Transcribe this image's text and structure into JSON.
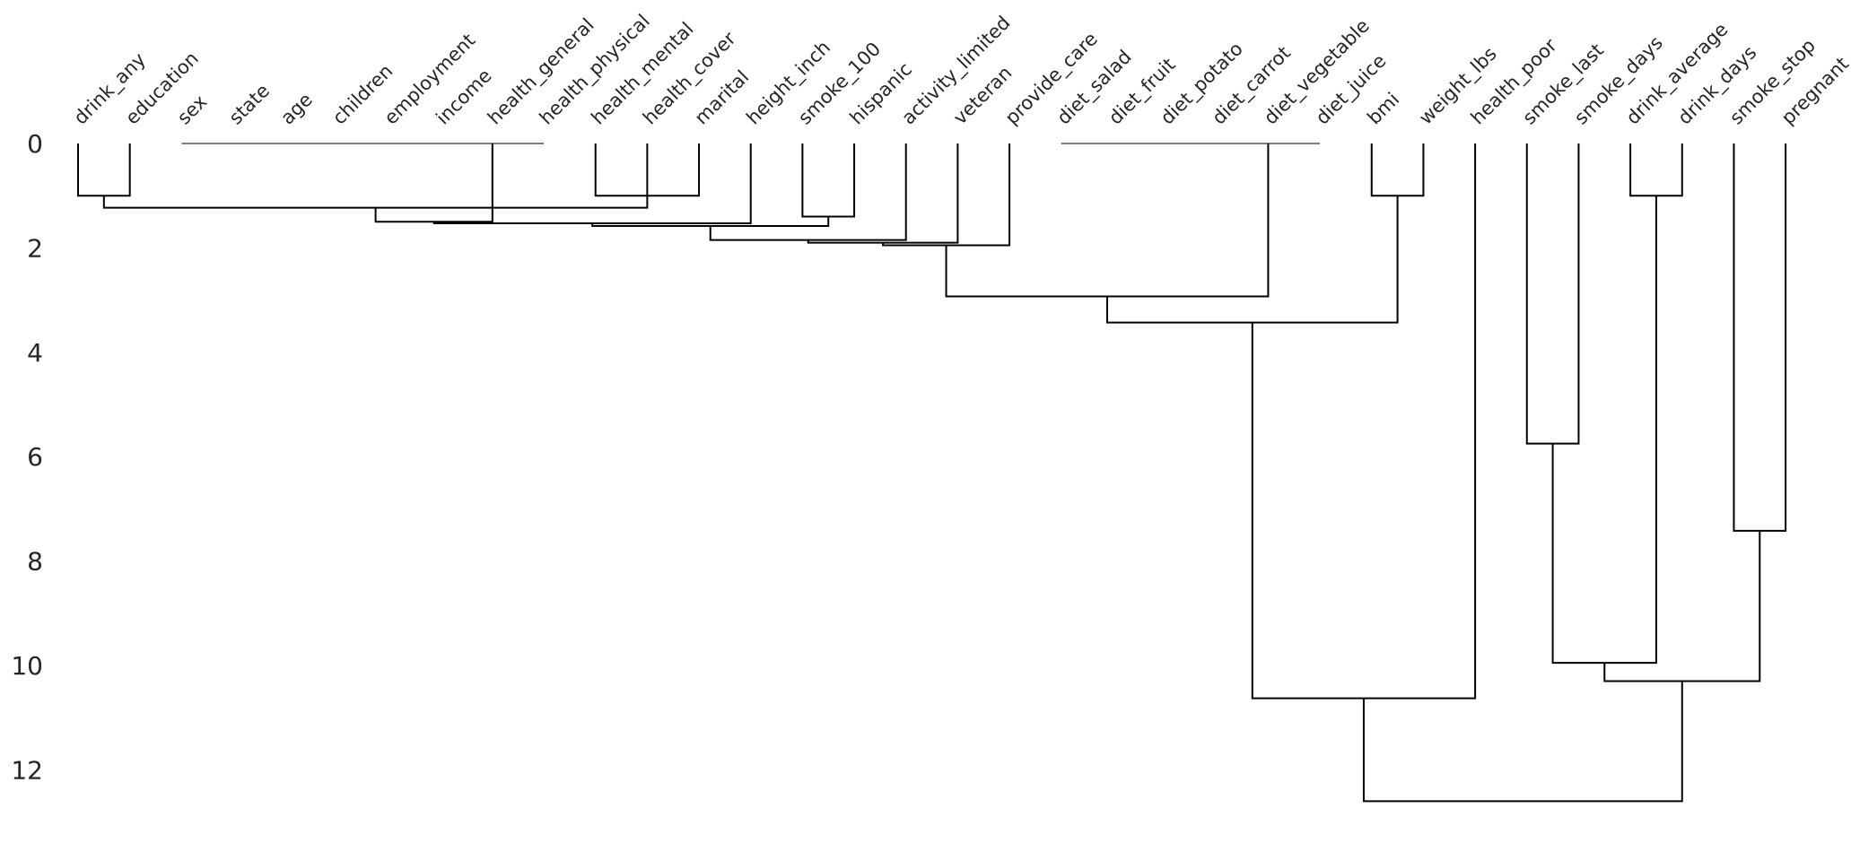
{
  "chart_data": {
    "type": "dendrogram",
    "title": "",
    "xlabel": "",
    "ylabel": "",
    "ylim": [
      0,
      13
    ],
    "y_ticks": [
      "0",
      "2",
      "4",
      "6",
      "8",
      "10",
      "12"
    ],
    "y_tick_values": [
      0,
      2,
      4,
      6,
      8,
      10,
      12
    ],
    "grid": false,
    "leaves": [
      "drink_any",
      "education",
      "sex",
      "state",
      "age",
      "children",
      "employment",
      "income",
      "health_general",
      "health_physical",
      "health_mental",
      "health_cover",
      "marital",
      "height_inch",
      "smoke_100",
      "hispanic",
      "activity_limited",
      "veteran",
      "provide_care",
      "diet_salad",
      "diet_fruit",
      "diet_potato",
      "diet_carrot",
      "diet_vegetable",
      "diet_juice",
      "bmi",
      "weight_lbs",
      "health_poor",
      "smoke_last",
      "smoke_days",
      "drink_average",
      "drink_days",
      "smoke_stop",
      "pregnant"
    ],
    "merges": [
      {
        "id": "z1",
        "left": "L2",
        "right": "L3",
        "height": 0
      },
      {
        "id": "z2",
        "left": "z1",
        "right": "L4",
        "height": 0
      },
      {
        "id": "z3",
        "left": "z2",
        "right": "L5",
        "height": 0
      },
      {
        "id": "z4",
        "left": "z3",
        "right": "L6",
        "height": 0
      },
      {
        "id": "z5",
        "left": "z4",
        "right": "L7",
        "height": 0
      },
      {
        "id": "z6",
        "left": "z5",
        "right": "L8",
        "height": 0
      },
      {
        "id": "z7",
        "left": "z6",
        "right": "L9",
        "height": 0
      },
      {
        "id": "z8",
        "left": "L19",
        "right": "L20",
        "height": 0
      },
      {
        "id": "z9",
        "left": "z8",
        "right": "L21",
        "height": 0
      },
      {
        "id": "z10",
        "left": "z9",
        "right": "L22",
        "height": 0
      },
      {
        "id": "z11",
        "left": "z10",
        "right": "L24",
        "height": 0
      },
      {
        "id": "m1",
        "left": "L0",
        "right": "L1",
        "height": 1.0
      },
      {
        "id": "m2",
        "left": "L10",
        "right": "L12",
        "height": 1.0
      },
      {
        "id": "m3",
        "left": "m2",
        "right": "L11",
        "height": 0
      },
      {
        "id": "m4",
        "left": "L25",
        "right": "L26",
        "height": 1.0
      },
      {
        "id": "m5",
        "left": "L30",
        "right": "L31",
        "height": 1.0
      },
      {
        "id": "m6",
        "left": "m1",
        "right": "m3",
        "height": 1.23
      },
      {
        "id": "m7",
        "left": "z7",
        "right": "m6",
        "height": 1.5
      },
      {
        "id": "m8",
        "left": "L14",
        "right": "L15",
        "height": 1.4
      },
      {
        "id": "m9",
        "left": "m7",
        "right": "L13",
        "height": 1.53
      },
      {
        "id": "m10",
        "left": "m9",
        "right": "m8",
        "height": 1.58
      },
      {
        "id": "m11",
        "left": "m10",
        "right": "L16",
        "height": 1.85
      },
      {
        "id": "m12",
        "left": "m11",
        "right": "L17",
        "height": 1.9
      },
      {
        "id": "m13",
        "left": "m12",
        "right": "L18",
        "height": 1.95
      },
      {
        "id": "m14",
        "left": "m13",
        "right": "L23",
        "height": 2.93
      },
      {
        "id": "m15",
        "left": "m14",
        "right": "m4",
        "height": 3.43
      },
      {
        "id": "m16",
        "left": "L28",
        "right": "L29",
        "height": 5.75
      },
      {
        "id": "m17",
        "left": "L32",
        "right": "L33",
        "height": 7.42
      },
      {
        "id": "m18",
        "left": "m16",
        "right": "m5",
        "height": 9.95
      },
      {
        "id": "m19",
        "left": "m18",
        "right": "m17",
        "height": 10.3
      },
      {
        "id": "m20",
        "left": "m15",
        "right": "L27",
        "height": 10.63
      },
      {
        "id": "m21",
        "left": "m20",
        "right": "m19",
        "height": 12.6
      }
    ]
  }
}
